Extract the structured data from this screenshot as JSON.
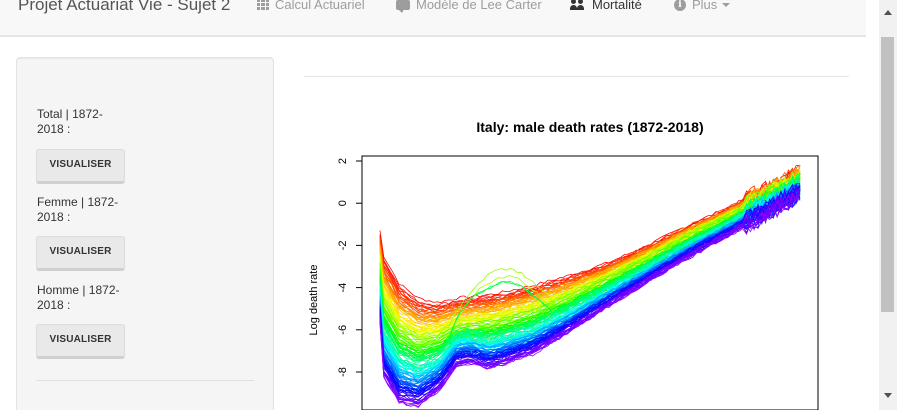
{
  "navbar": {
    "brand": "Projet Actuariat Vie - Sujet 2",
    "items": [
      {
        "label": "Calcul Actuariel",
        "icon": "table-icon"
      },
      {
        "label": "Modèle de Lee Carter",
        "icon": "comments-icon"
      },
      {
        "label": "Mortalité",
        "icon": "users-icon",
        "active": true
      },
      {
        "label": "Plus",
        "icon": "info-circle-icon",
        "dropdown": true
      }
    ]
  },
  "sidebar": {
    "groups": [
      {
        "label": "Total | 1872-2018 :",
        "button": "VISUALISER"
      },
      {
        "label": "Femme | 1872-2018 :",
        "button": "VISUALISER"
      },
      {
        "label": "Homme | 1872-2018 :",
        "button": "VISUALISER"
      }
    ]
  },
  "chart_data": {
    "type": "line",
    "title": "Italy: male death rates  (1872-2018)",
    "ylabel": "Log death rate",
    "xlabel": "",
    "y_ticks": [
      2,
      0,
      -2,
      -4,
      -6,
      -8
    ],
    "ylim": [
      -10,
      2.4
    ],
    "xlim": [
      0,
      110
    ],
    "series_count": 147,
    "colors": "rainbow palette, red (earliest year) to violet (latest year)",
    "series": [
      {
        "name": "1872",
        "x": [
          0,
          1,
          5,
          10,
          15,
          20,
          30,
          40,
          50,
          60,
          70,
          80,
          90,
          100,
          110
        ],
        "values": [
          -1.3,
          -2.5,
          -3.8,
          -4.5,
          -4.7,
          -4.5,
          -4.3,
          -3.9,
          -3.4,
          -2.8,
          -2.0,
          -1.1,
          -0.3,
          0.6,
          1.5
        ]
      },
      {
        "name": "2018",
        "x": [
          0,
          1,
          5,
          10,
          15,
          20,
          30,
          40,
          50,
          60,
          70,
          80,
          90,
          100,
          110
        ],
        "values": [
          -5.6,
          -8.2,
          -9.4,
          -9.6,
          -8.9,
          -8.0,
          -7.7,
          -7.1,
          -6.0,
          -4.8,
          -3.7,
          -2.6,
          -1.6,
          -0.6,
          0.4
        ]
      }
    ],
    "grid": false,
    "legend": "none"
  },
  "scrollbar": {
    "up": "scroll-up-arrow",
    "down": "scroll-down-arrow"
  }
}
